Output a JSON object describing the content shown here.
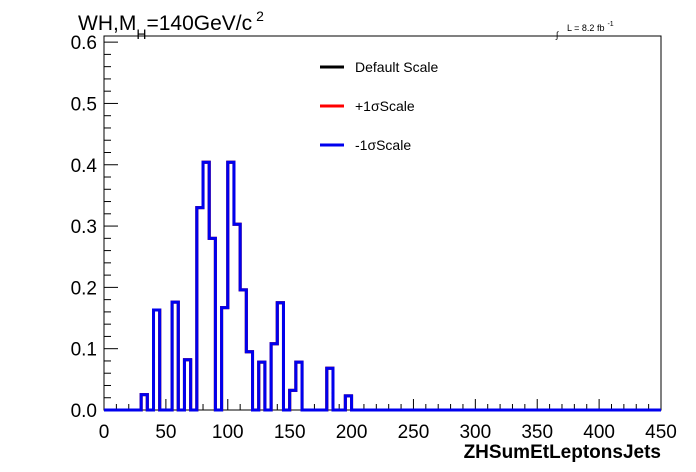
{
  "chart_data": {
    "type": "line",
    "style": "step-histogram",
    "title_parts": {
      "prefix": "WH,M",
      "subscript": "H",
      "middle": "=140GeV/c",
      "superscript": "2"
    },
    "lumi_label": {
      "integral": "∫",
      "text": "L = 8.2 fb",
      "superscript": "-1"
    },
    "xlabel": "ZHSumEtLeptonsJets",
    "ylabel": "",
    "xlim": [
      0,
      450
    ],
    "ylim": [
      0,
      0.61
    ],
    "x_ticks": [
      "0",
      "50",
      "100",
      "150",
      "200",
      "250",
      "300",
      "350",
      "400",
      "450"
    ],
    "y_ticks": [
      "0.0",
      "0.1",
      "0.2",
      "0.3",
      "0.4",
      "0.5",
      "0.6"
    ],
    "bin_width": 5,
    "bin_edges_start": 0,
    "series": [
      {
        "name": "Default Scale",
        "color": "#000000",
        "values": [
          0,
          0,
          0,
          0,
          0,
          0,
          0.025,
          0,
          0.163,
          0,
          0,
          0.176,
          0,
          0.082,
          0,
          0.33,
          0.404,
          0.28,
          0,
          0.167,
          0.404,
          0.303,
          0.196,
          0.095,
          0,
          0.078,
          0,
          0.108,
          0.175,
          0,
          0.032,
          0.078,
          0,
          0,
          0,
          0,
          0.068,
          0,
          0,
          0.023,
          0,
          0,
          0,
          0,
          0,
          0,
          0,
          0,
          0,
          0,
          0,
          0,
          0,
          0,
          0,
          0,
          0,
          0,
          0,
          0,
          0,
          0,
          0,
          0,
          0,
          0,
          0,
          0,
          0,
          0,
          0,
          0,
          0,
          0,
          0,
          0,
          0,
          0,
          0,
          0,
          0,
          0,
          0,
          0,
          0,
          0,
          0,
          0,
          0,
          0
        ]
      },
      {
        "name": "+1σScale",
        "color": "#ff0000",
        "values": [
          0,
          0,
          0,
          0,
          0,
          0,
          0.025,
          0,
          0.163,
          0,
          0,
          0.176,
          0,
          0.082,
          0,
          0.33,
          0.404,
          0.28,
          0,
          0.167,
          0.404,
          0.303,
          0.196,
          0.095,
          0,
          0.078,
          0,
          0.108,
          0.175,
          0,
          0.032,
          0.078,
          0,
          0,
          0,
          0,
          0.068,
          0,
          0,
          0.023,
          0,
          0,
          0,
          0,
          0,
          0,
          0,
          0,
          0,
          0,
          0,
          0,
          0,
          0,
          0,
          0,
          0,
          0,
          0,
          0,
          0,
          0,
          0,
          0,
          0,
          0,
          0,
          0,
          0,
          0,
          0,
          0,
          0,
          0,
          0,
          0,
          0,
          0,
          0,
          0,
          0,
          0,
          0,
          0,
          0,
          0,
          0,
          0,
          0,
          0
        ]
      },
      {
        "name": "-1σScale",
        "color": "#0000ee",
        "values": [
          0,
          0,
          0,
          0,
          0,
          0,
          0.025,
          0,
          0.163,
          0,
          0,
          0.176,
          0,
          0.082,
          0,
          0.33,
          0.404,
          0.28,
          0,
          0.167,
          0.404,
          0.303,
          0.196,
          0.095,
          0,
          0.078,
          0,
          0.108,
          0.175,
          0,
          0.032,
          0.078,
          0,
          0,
          0,
          0,
          0.068,
          0,
          0,
          0.023,
          0,
          0,
          0,
          0,
          0,
          0,
          0,
          0,
          0,
          0,
          0,
          0,
          0,
          0,
          0,
          0,
          0,
          0,
          0,
          0,
          0,
          0,
          0,
          0,
          0,
          0,
          0,
          0,
          0,
          0,
          0,
          0,
          0,
          0,
          0,
          0,
          0,
          0,
          0,
          0,
          0,
          0,
          0,
          0,
          0,
          0,
          0,
          0,
          0,
          0
        ]
      }
    ],
    "legend_entries": [
      "Default Scale",
      "+1σScale",
      "-1σScale"
    ],
    "legend_position": "top-center",
    "grid": false
  }
}
